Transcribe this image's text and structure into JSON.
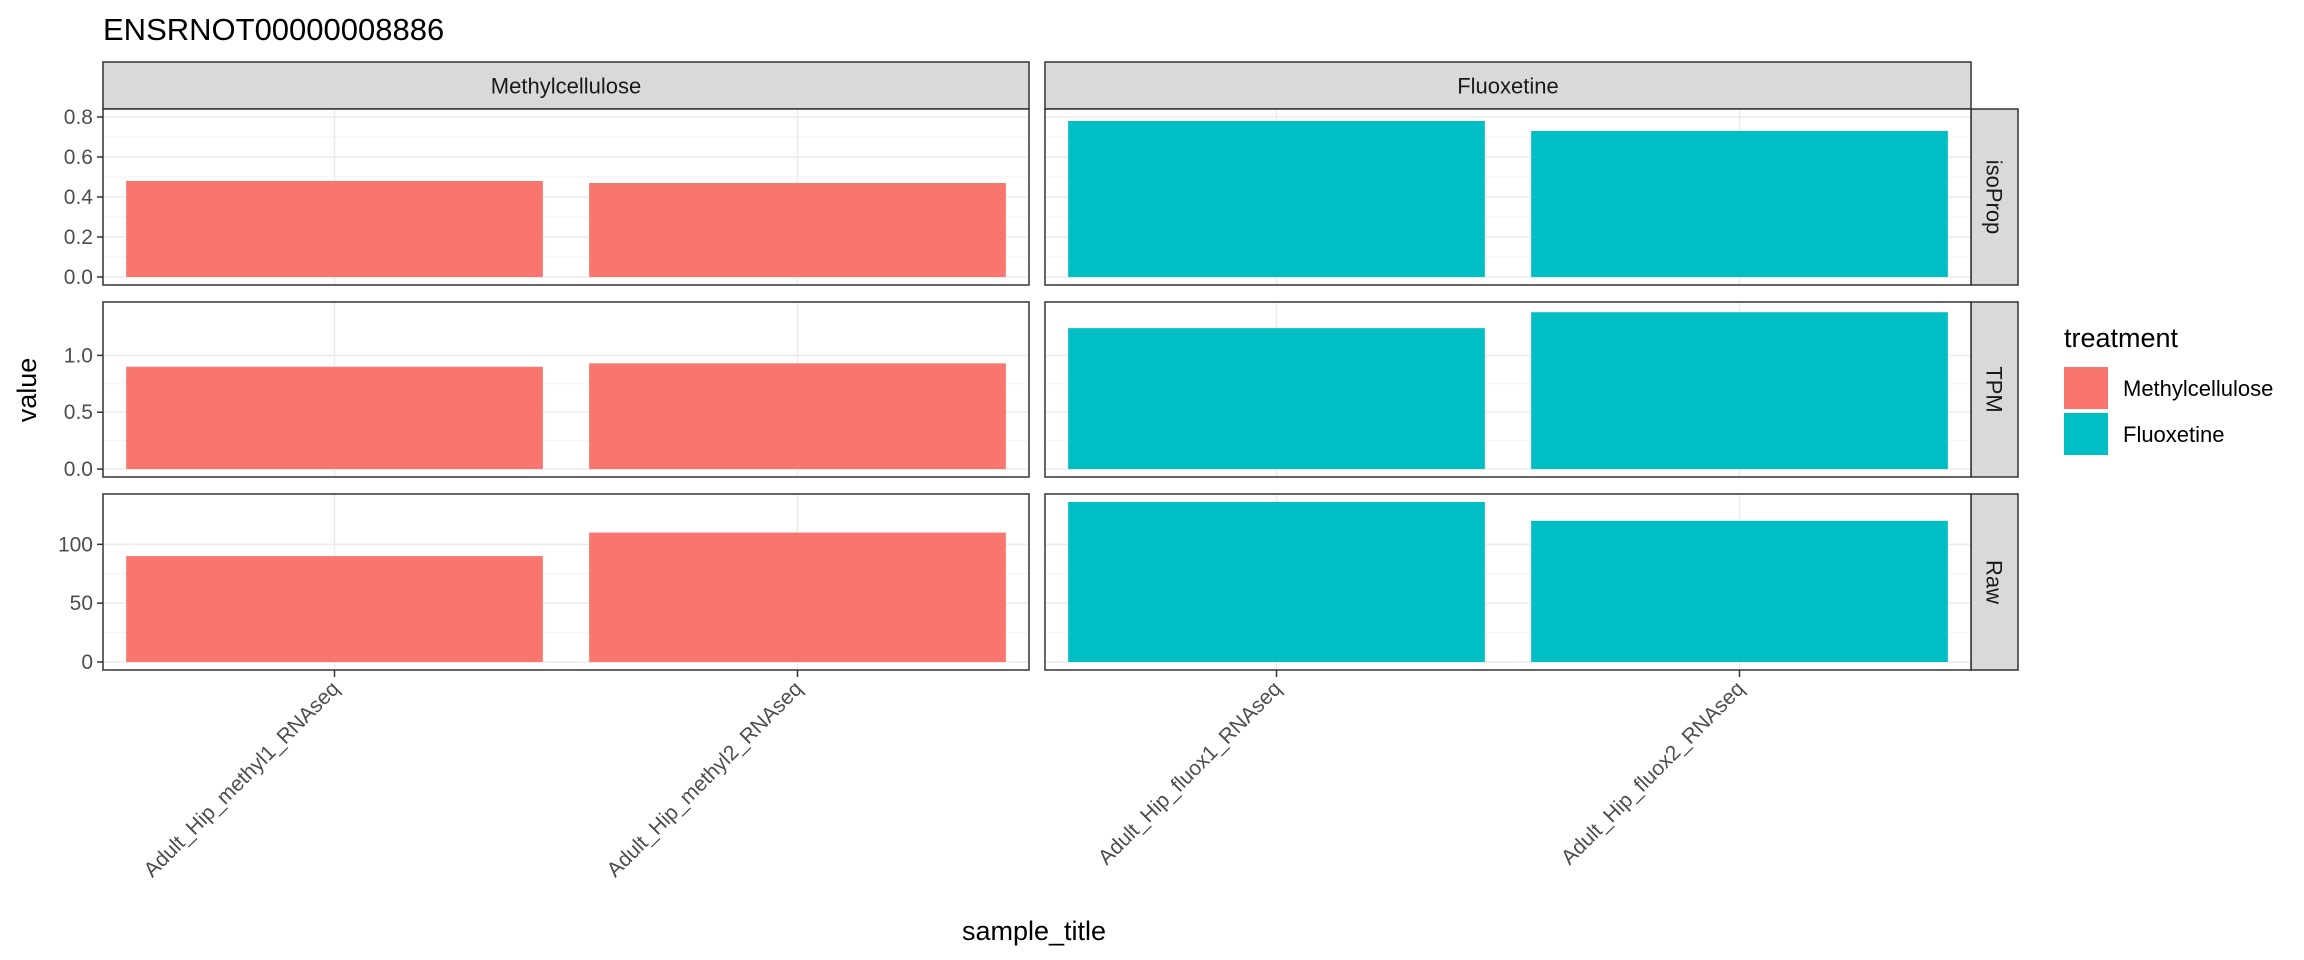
{
  "chart_data": {
    "type": "bar",
    "title": "ENSRNOT00000008886",
    "xlabel": "sample_title",
    "ylabel": "value",
    "facet_columns": [
      "Methylcellulose",
      "Fluoxetine"
    ],
    "facet_rows": [
      "isoProp",
      "TPM",
      "Raw"
    ],
    "samples": {
      "Methylcellulose": [
        "Adult_Hip_methyl1_RNAseq",
        "Adult_Hip_methyl2_RNAseq"
      ],
      "Fluoxetine": [
        "Adult_Hip_fluox1_RNAseq",
        "Adult_Hip_fluox2_RNAseq"
      ]
    },
    "rows": [
      {
        "name": "isoProp",
        "ylim": [
          -0.04,
          0.84
        ],
        "ticks": [
          0.0,
          0.2,
          0.4,
          0.6,
          0.8
        ],
        "tick_labels": [
          "0.0",
          "0.2",
          "0.4",
          "0.6",
          "0.8"
        ],
        "values": {
          "Methylcellulose": [
            0.48,
            0.47
          ],
          "Fluoxetine": [
            0.78,
            0.73
          ]
        }
      },
      {
        "name": "TPM",
        "ylim": [
          -0.07,
          1.47
        ],
        "ticks": [
          0.0,
          0.5,
          1.0
        ],
        "tick_labels": [
          "0.0",
          "0.5",
          "1.0"
        ],
        "values": {
          "Methylcellulose": [
            0.9,
            0.93
          ],
          "Fluoxetine": [
            1.24,
            1.38
          ]
        }
      },
      {
        "name": "Raw",
        "ylim": [
          -6.8,
          142.8
        ],
        "ticks": [
          0,
          50,
          100
        ],
        "tick_labels": [
          "0",
          "50",
          "100"
        ],
        "values": {
          "Methylcellulose": [
            90,
            110
          ],
          "Fluoxetine": [
            136,
            120
          ]
        }
      }
    ],
    "legend": {
      "title": "treatment",
      "position": "right",
      "entries": [
        {
          "label": "Methylcellulose",
          "color": "#F8766D"
        },
        {
          "label": "Fluoxetine",
          "color": "#00BFC4"
        }
      ]
    },
    "grid": true
  }
}
